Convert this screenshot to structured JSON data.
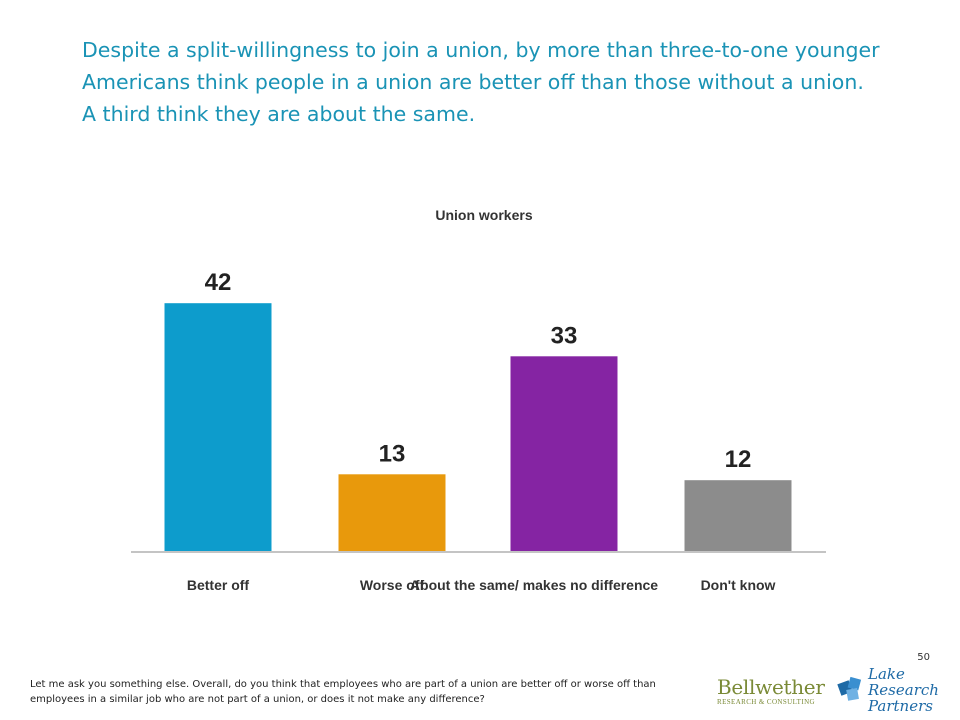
{
  "headline": "Despite a split-willingness to join a union, by more than three-to-one younger Americans think people in a union are better off than those without a union.  A third think they are about the same.",
  "chart_data": {
    "type": "bar",
    "title": "Union workers",
    "categories": [
      "Better off",
      "Worse off",
      "About the same/ makes no difference",
      "Don't know"
    ],
    "values": [
      42,
      13,
      33,
      12
    ],
    "colors": [
      "#0d9ccc",
      "#e8990c",
      "#8524a3",
      "#8c8c8c"
    ],
    "data_labels": [
      "42",
      "13",
      "33",
      "12"
    ],
    "ylim": [
      0,
      50
    ],
    "grid": false,
    "legend": "none",
    "xlabel": "",
    "ylabel": ""
  },
  "slide_number": "50",
  "footnote": "Let me ask you something else.  Overall, do you think that employees who are part of a union are better off or worse off than employees in a similar job who are not part of a union, or does it not make any difference?",
  "logos": {
    "bellwether_name": "Bellwether",
    "bellwether_sub": "RESEARCH & CONSULTING",
    "lake_line1": "Lake",
    "lake_line2": "Research",
    "lake_line3": "Partners",
    "lake_mark_icon": "puzzle-pieces-icon"
  }
}
